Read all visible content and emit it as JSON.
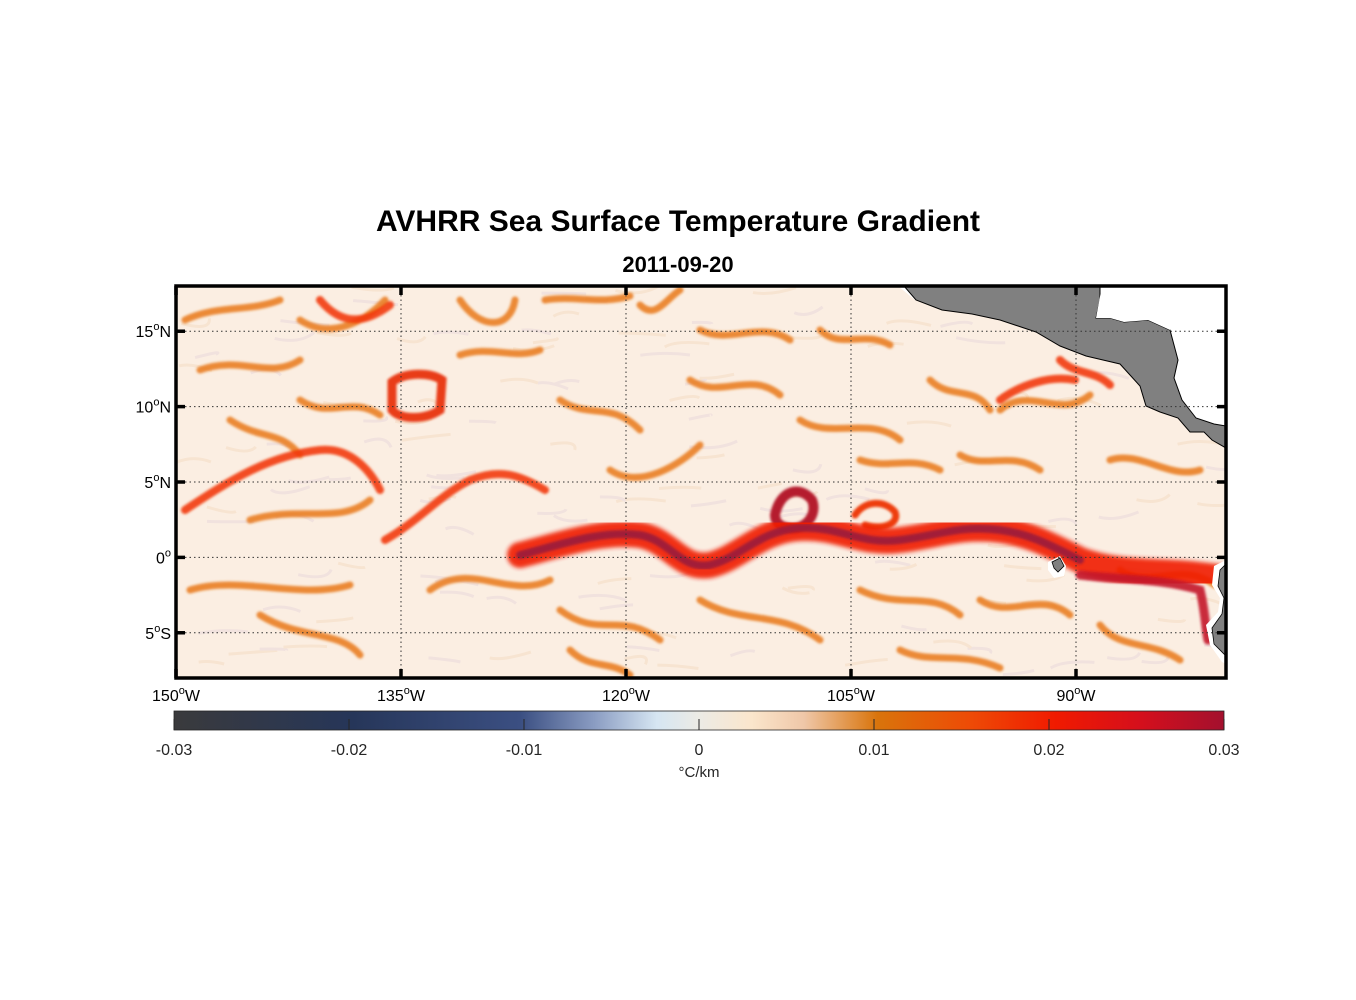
{
  "title": "AVHRR Sea Surface Temperature Gradient",
  "subtitle": "2011-09-20",
  "map": {
    "lon_range": [
      -150,
      -80
    ],
    "lat_range": [
      -8,
      18
    ],
    "grid": "dotted",
    "land_color": "#808080",
    "lon_ticks": [
      {
        "value": -150,
        "deg": "150",
        "suffix": "W"
      },
      {
        "value": -135,
        "deg": "135",
        "suffix": "W"
      },
      {
        "value": -120,
        "deg": "120",
        "suffix": "W"
      },
      {
        "value": -105,
        "deg": "105",
        "suffix": "W"
      },
      {
        "value": -90,
        "deg": "90",
        "suffix": "W"
      }
    ],
    "lat_ticks": [
      {
        "value": 15,
        "deg": "15",
        "suffix": "N"
      },
      {
        "value": 10,
        "deg": "10",
        "suffix": "N"
      },
      {
        "value": 5,
        "deg": "5",
        "suffix": "N"
      },
      {
        "value": 0,
        "deg": "0",
        "suffix": ""
      },
      {
        "value": -5,
        "deg": "5",
        "suffix": "S"
      }
    ]
  },
  "colorbar": {
    "range": [
      -0.03,
      0.03
    ],
    "ticks": [
      "-0.03",
      "-0.02",
      "-0.01",
      "0",
      "0.01",
      "0.02",
      "0.03"
    ],
    "tick_values": [
      -0.03,
      -0.02,
      -0.01,
      0,
      0.01,
      0.02,
      0.03
    ],
    "unit": "°C/km",
    "colors": [
      "#3a3a3c",
      "#263659",
      "#5a6a97",
      "#cfe1f0",
      "#fbeee0",
      "#d9740b",
      "#f21a00",
      "#a3102e"
    ]
  },
  "fronts": {
    "equatorial_front_color": "#9e1f3a",
    "eddy_color": "#e3630e",
    "strong_front_color": "#ee2200"
  }
}
